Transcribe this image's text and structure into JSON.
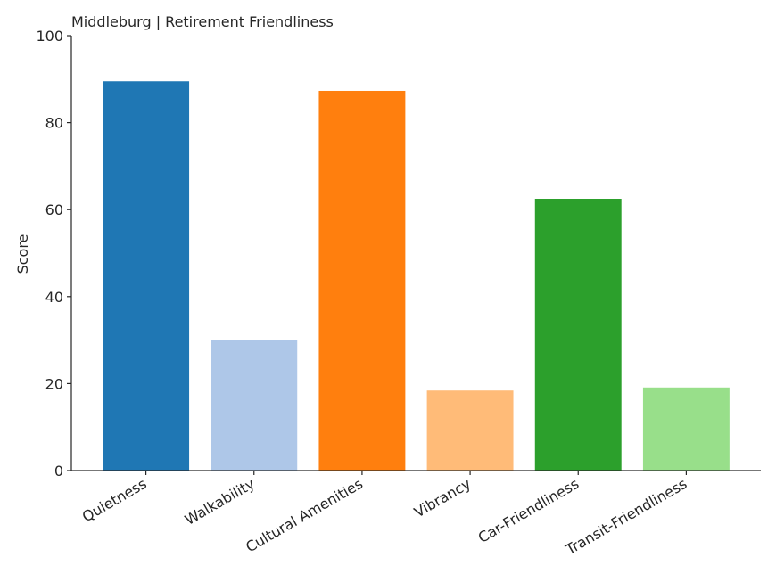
{
  "chart_data": {
    "type": "bar",
    "title": "Middleburg | Retirement Friendliness",
    "y_label": "Score",
    "categories": [
      "Quietness",
      "Walkability",
      "Cultural Amenities",
      "Vibrancy",
      "Car-Friendliness",
      "Transit-Friendliness"
    ],
    "values": [
      89.5,
      30,
      87.3,
      18.4,
      62.5,
      19.1
    ],
    "colors": [
      "#1f77b4",
      "#aec7e8",
      "#ff7f0e",
      "#ffbb78",
      "#2ca02c",
      "#98df8a"
    ],
    "ylim": [
      0,
      100
    ],
    "yticks": [
      0,
      20,
      40,
      60,
      80,
      100
    ],
    "grid": false
  }
}
